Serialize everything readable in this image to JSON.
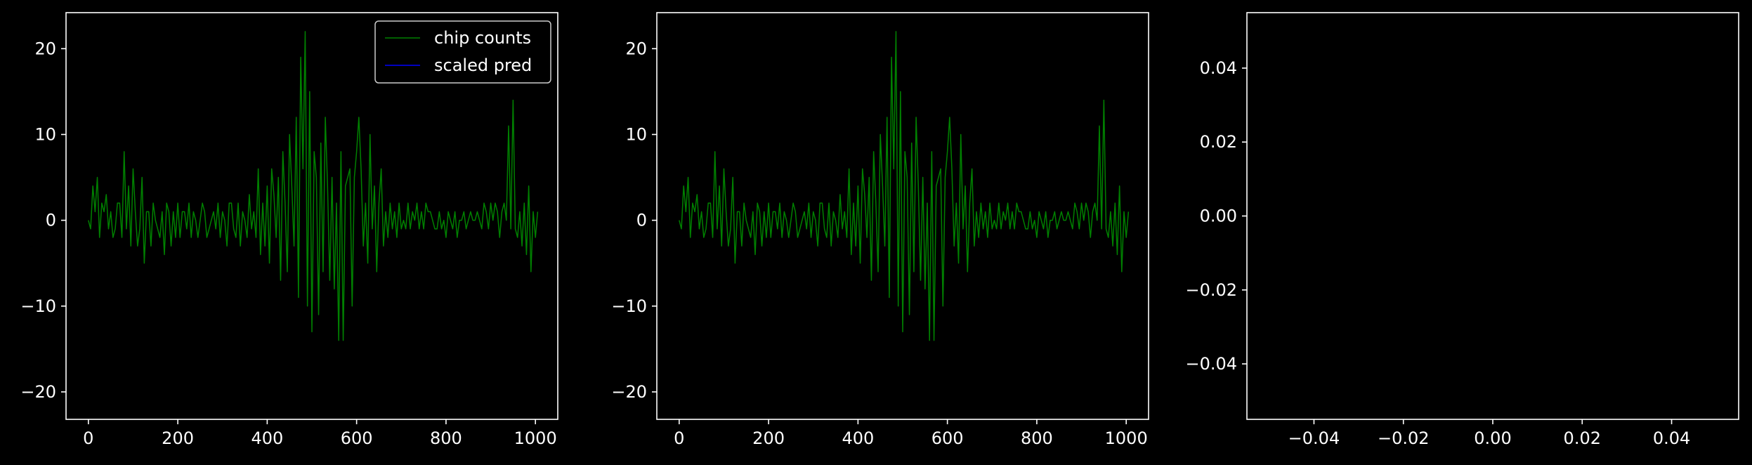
{
  "chart_data": [
    {
      "type": "line",
      "title": "",
      "xlabel": "",
      "ylabel": "",
      "xlim": [
        -50,
        1050
      ],
      "ylim": [
        -23.2,
        24.2
      ],
      "xticks": [
        0,
        200,
        400,
        600,
        800,
        1000
      ],
      "xtick_labels": [
        "0",
        "200",
        "400",
        "600",
        "800",
        "1000"
      ],
      "yticks": [
        -20,
        -10,
        0,
        10,
        20
      ],
      "ytick_labels": [
        "−20",
        "−10",
        "0",
        "10",
        "20"
      ],
      "legend": {
        "position": "top-right",
        "entries": [
          {
            "label": "chip counts",
            "color": "#008000"
          },
          {
            "label": "scaled pred",
            "color": "#0000ff"
          }
        ]
      },
      "series": [
        {
          "name": "chip counts",
          "color": "#008000",
          "x_start": 0,
          "x_step": 5,
          "values": [
            0,
            -1,
            4,
            1,
            5,
            -2,
            2,
            1,
            3,
            -1,
            1,
            -2,
            -1,
            2,
            2,
            -2,
            8,
            -1,
            4,
            -3,
            6,
            1,
            -3,
            -1,
            5,
            -5,
            1,
            1,
            -3,
            2,
            0,
            -1,
            -2,
            1,
            -4,
            2,
            1,
            -3,
            1,
            -2,
            2,
            -2,
            1,
            1,
            -1,
            2,
            -2,
            1,
            0,
            -2,
            0,
            2,
            1,
            -2,
            -1,
            0,
            1,
            -1,
            2,
            -2,
            1,
            0,
            -3,
            2,
            2,
            -1,
            -2,
            2,
            -3,
            1,
            0,
            -2,
            3,
            -1,
            1,
            -2,
            6,
            -4,
            2,
            -3,
            4,
            -5,
            6,
            3,
            -2,
            5,
            -7,
            8,
            2,
            -6,
            10,
            4,
            -3,
            12,
            -9,
            19,
            6,
            22,
            -10,
            15,
            -13,
            8,
            5,
            -11,
            9,
            -6,
            12,
            4,
            -7,
            5,
            -8,
            2,
            -14,
            8,
            -14,
            4,
            5,
            6,
            -10,
            5,
            8,
            12,
            6,
            -3,
            2,
            -5,
            10,
            -1,
            4,
            -6,
            2,
            6,
            -3,
            1,
            -2,
            2,
            -1,
            1,
            -2,
            2,
            -1,
            0,
            -1,
            2,
            -1,
            1,
            0,
            2,
            -1,
            1,
            -1,
            2,
            1,
            1,
            0,
            -1,
            -1,
            1,
            -1,
            0,
            -2,
            1,
            0,
            -1,
            1,
            -2,
            0,
            0,
            1,
            -1,
            0,
            1,
            0,
            0,
            1,
            0,
            -1,
            2,
            1,
            -1,
            2,
            0,
            2,
            1,
            -2,
            1,
            2,
            0,
            11,
            -1,
            14,
            -1,
            -2,
            1,
            -3,
            2,
            -4,
            4,
            -6,
            1,
            -2,
            1
          ]
        },
        {
          "name": "scaled pred",
          "color": "#0000ff",
          "x_start": 0,
          "x_step": 5,
          "values": []
        }
      ]
    },
    {
      "type": "line",
      "title": "",
      "xlabel": "",
      "ylabel": "",
      "xlim": [
        -50,
        1050
      ],
      "ylim": [
        -23.2,
        24.2
      ],
      "xticks": [
        0,
        200,
        400,
        600,
        800,
        1000
      ],
      "xtick_labels": [
        "0",
        "200",
        "400",
        "600",
        "800",
        "1000"
      ],
      "yticks": [
        -20,
        -10,
        0,
        10,
        20
      ],
      "ytick_labels": [
        "−20",
        "−10",
        "0",
        "10",
        "20"
      ],
      "series": [
        {
          "color": "#008000",
          "x_start": 0,
          "x_step": 5,
          "values": [
            0,
            -1,
            4,
            1,
            5,
            -2,
            2,
            1,
            3,
            -1,
            1,
            -2,
            -1,
            2,
            2,
            -2,
            8,
            -1,
            4,
            -3,
            6,
            1,
            -3,
            -1,
            5,
            -5,
            1,
            1,
            -3,
            2,
            0,
            -1,
            -2,
            1,
            -4,
            2,
            1,
            -3,
            1,
            -2,
            2,
            -2,
            1,
            1,
            -1,
            2,
            -2,
            1,
            0,
            -2,
            0,
            2,
            1,
            -2,
            -1,
            0,
            1,
            -1,
            2,
            -2,
            1,
            0,
            -3,
            2,
            2,
            -1,
            -2,
            2,
            -3,
            1,
            0,
            -2,
            3,
            -1,
            1,
            -2,
            6,
            -4,
            2,
            -3,
            4,
            -5,
            6,
            3,
            -2,
            5,
            -7,
            8,
            2,
            -6,
            10,
            4,
            -3,
            12,
            -9,
            19,
            6,
            22,
            -10,
            15,
            -13,
            8,
            5,
            -11,
            9,
            -6,
            12,
            4,
            -7,
            5,
            -8,
            2,
            -14,
            8,
            -14,
            4,
            5,
            6,
            -10,
            5,
            8,
            12,
            6,
            -3,
            2,
            -5,
            10,
            -1,
            4,
            -6,
            2,
            6,
            -3,
            1,
            -2,
            2,
            -1,
            1,
            -2,
            2,
            -1,
            0,
            -1,
            2,
            -1,
            1,
            0,
            2,
            -1,
            1,
            -1,
            2,
            1,
            1,
            0,
            -1,
            -1,
            1,
            -1,
            0,
            -2,
            1,
            0,
            -1,
            1,
            -2,
            0,
            0,
            1,
            -1,
            0,
            1,
            0,
            0,
            1,
            0,
            -1,
            2,
            1,
            -1,
            2,
            0,
            2,
            1,
            -2,
            1,
            2,
            0,
            11,
            -1,
            14,
            -1,
            -2,
            1,
            -3,
            2,
            -4,
            4,
            -6,
            1,
            -2,
            1
          ]
        }
      ]
    },
    {
      "type": "line",
      "title": "",
      "xlabel": "",
      "ylabel": "",
      "xlim": [
        -0.055,
        0.055
      ],
      "ylim": [
        -0.055,
        0.055
      ],
      "xticks": [
        -0.04,
        -0.02,
        0.0,
        0.02,
        0.04
      ],
      "xtick_labels": [
        "−0.04",
        "−0.02",
        "0.00",
        "0.02",
        "0.04"
      ],
      "yticks": [
        -0.04,
        -0.02,
        0.0,
        0.02,
        0.04
      ],
      "ytick_labels": [
        "−0.04",
        "−0.02",
        "0.00",
        "0.02",
        "0.04"
      ],
      "series": []
    }
  ]
}
